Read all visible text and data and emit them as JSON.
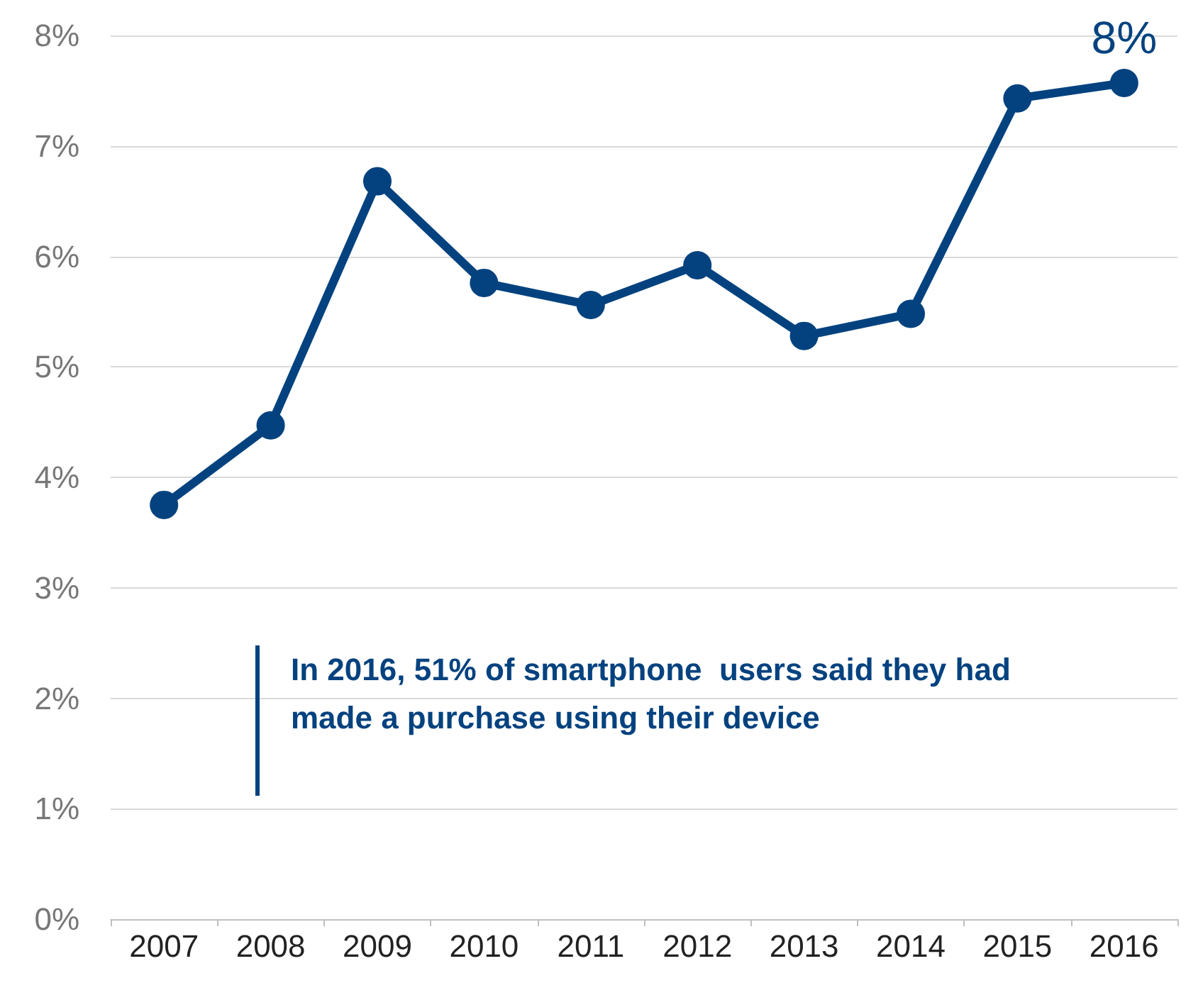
{
  "chart_data": {
    "type": "line",
    "categories": [
      "2007",
      "2008",
      "2009",
      "2010",
      "2011",
      "2012",
      "2013",
      "2014",
      "2015",
      "2016"
    ],
    "series": [
      {
        "color": "#04427f",
        "values": [
          3.75,
          4.47,
          6.68,
          5.76,
          5.56,
          5.92,
          5.28,
          5.48,
          7.43,
          7.57
        ],
        "value_labels": [
          null,
          null,
          null,
          null,
          null,
          null,
          null,
          null,
          null,
          "8%"
        ]
      }
    ],
    "ylim": [
      0,
      8
    ],
    "yticks": [
      {
        "value": 0,
        "label": "0%"
      },
      {
        "value": 1,
        "label": "1%"
      },
      {
        "value": 2,
        "label": "2%"
      },
      {
        "value": 3,
        "label": "3%"
      },
      {
        "value": 4,
        "label": "4%"
      },
      {
        "value": 5,
        "label": "5%"
      },
      {
        "value": 6,
        "label": "6%"
      },
      {
        "value": 7,
        "label": "7%"
      },
      {
        "value": 8,
        "label": "8%"
      }
    ],
    "grid": "y",
    "marker": "circle",
    "line_style": "solid",
    "annotations": [
      "In 2016, 51% of smartphone  users said they had made a purchase using their device"
    ]
  }
}
